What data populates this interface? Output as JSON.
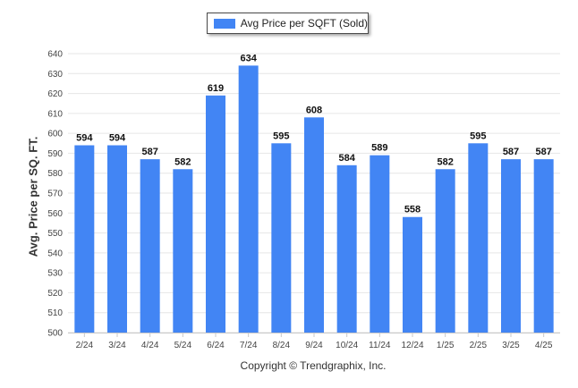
{
  "chart_data": {
    "type": "bar",
    "categories": [
      "2/24",
      "3/24",
      "4/24",
      "5/24",
      "6/24",
      "7/24",
      "8/24",
      "9/24",
      "10/24",
      "11/24",
      "12/24",
      "1/25",
      "2/25",
      "3/25",
      "4/25"
    ],
    "series": [
      {
        "name": "Avg Price per SQFT (Sold)",
        "values": [
          594,
          594,
          587,
          582,
          619,
          634,
          595,
          608,
          584,
          589,
          558,
          582,
          595,
          587,
          587
        ]
      }
    ],
    "ylabel": "Avg. Price per SQ. FT.",
    "xlabel": "",
    "ylim": [
      500,
      640
    ],
    "yticks": [
      500,
      510,
      520,
      530,
      540,
      550,
      560,
      570,
      580,
      590,
      600,
      610,
      620,
      630,
      640
    ],
    "grid": true,
    "legend_position": "top-center",
    "data_labels": true
  },
  "colors": {
    "bar": "#4285f4"
  },
  "footer": "Copyright © Trendgraphix, Inc."
}
